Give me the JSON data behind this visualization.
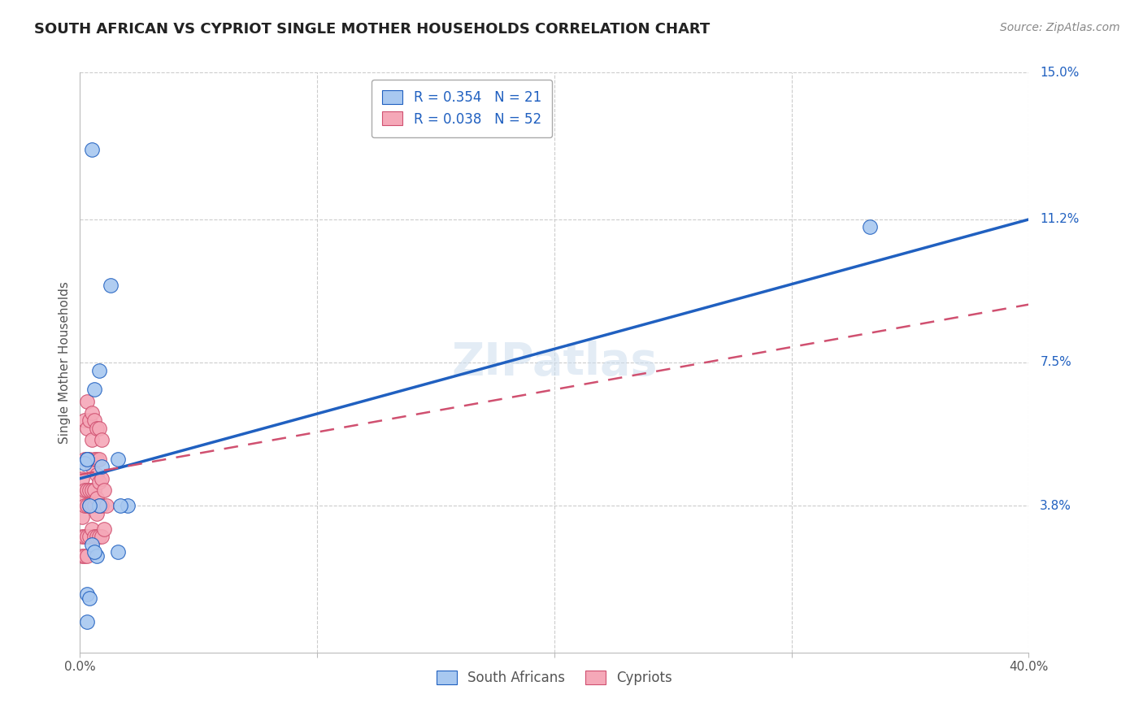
{
  "title": "SOUTH AFRICAN VS CYPRIOT SINGLE MOTHER HOUSEHOLDS CORRELATION CHART",
  "source": "Source: ZipAtlas.com",
  "ylabel": "Single Mother Households",
  "xlim": [
    0.0,
    0.4
  ],
  "ylim": [
    0.0,
    0.15
  ],
  "yticks": [
    0.038,
    0.075,
    0.112,
    0.15
  ],
  "ytick_labels": [
    "3.8%",
    "7.5%",
    "11.2%",
    "15.0%"
  ],
  "legend_r_blue": "R = 0.354",
  "legend_n_blue": "N = 21",
  "legend_r_pink": "R = 0.038",
  "legend_n_pink": "N = 52",
  "watermark": "ZIPatlas",
  "blue_color": "#A8C8F0",
  "pink_color": "#F5A8B8",
  "line_blue": "#2060C0",
  "line_pink": "#D05070",
  "blue_line_start_y": 0.045,
  "blue_line_end_y": 0.112,
  "pink_line_start_y": 0.046,
  "pink_line_end_y": 0.09,
  "south_africans_x": [
    0.005,
    0.013,
    0.008,
    0.006,
    0.003,
    0.002,
    0.003,
    0.009,
    0.008,
    0.004,
    0.016,
    0.02,
    0.017,
    0.016,
    0.005,
    0.007,
    0.333,
    0.003,
    0.006,
    0.004,
    0.003
  ],
  "south_africans_y": [
    0.13,
    0.095,
    0.073,
    0.068,
    0.05,
    0.049,
    0.05,
    0.048,
    0.038,
    0.038,
    0.05,
    0.038,
    0.038,
    0.026,
    0.028,
    0.025,
    0.11,
    0.015,
    0.026,
    0.014,
    0.008
  ],
  "cypriots_x": [
    0.001,
    0.001,
    0.001,
    0.001,
    0.001,
    0.002,
    0.002,
    0.002,
    0.002,
    0.002,
    0.002,
    0.003,
    0.003,
    0.003,
    0.003,
    0.003,
    0.003,
    0.003,
    0.004,
    0.004,
    0.004,
    0.004,
    0.004,
    0.005,
    0.005,
    0.005,
    0.005,
    0.005,
    0.005,
    0.006,
    0.006,
    0.006,
    0.006,
    0.006,
    0.007,
    0.007,
    0.007,
    0.007,
    0.007,
    0.007,
    0.008,
    0.008,
    0.008,
    0.008,
    0.008,
    0.009,
    0.009,
    0.009,
    0.009,
    0.01,
    0.01,
    0.011
  ],
  "cypriots_y": [
    0.025,
    0.03,
    0.035,
    0.04,
    0.045,
    0.025,
    0.03,
    0.038,
    0.042,
    0.05,
    0.06,
    0.025,
    0.03,
    0.038,
    0.042,
    0.05,
    0.058,
    0.065,
    0.03,
    0.038,
    0.042,
    0.05,
    0.06,
    0.032,
    0.038,
    0.042,
    0.048,
    0.055,
    0.062,
    0.03,
    0.038,
    0.042,
    0.05,
    0.06,
    0.03,
    0.036,
    0.04,
    0.046,
    0.05,
    0.058,
    0.03,
    0.038,
    0.044,
    0.05,
    0.058,
    0.03,
    0.038,
    0.045,
    0.055,
    0.032,
    0.042,
    0.038
  ],
  "grid_color": "#CCCCCC",
  "background_color": "#FFFFFF",
  "title_fontsize": 13,
  "axis_label_fontsize": 11,
  "tick_fontsize": 11,
  "legend_fontsize": 12,
  "watermark_fontsize": 40,
  "watermark_color": "#DDDDDD",
  "source_fontsize": 10
}
